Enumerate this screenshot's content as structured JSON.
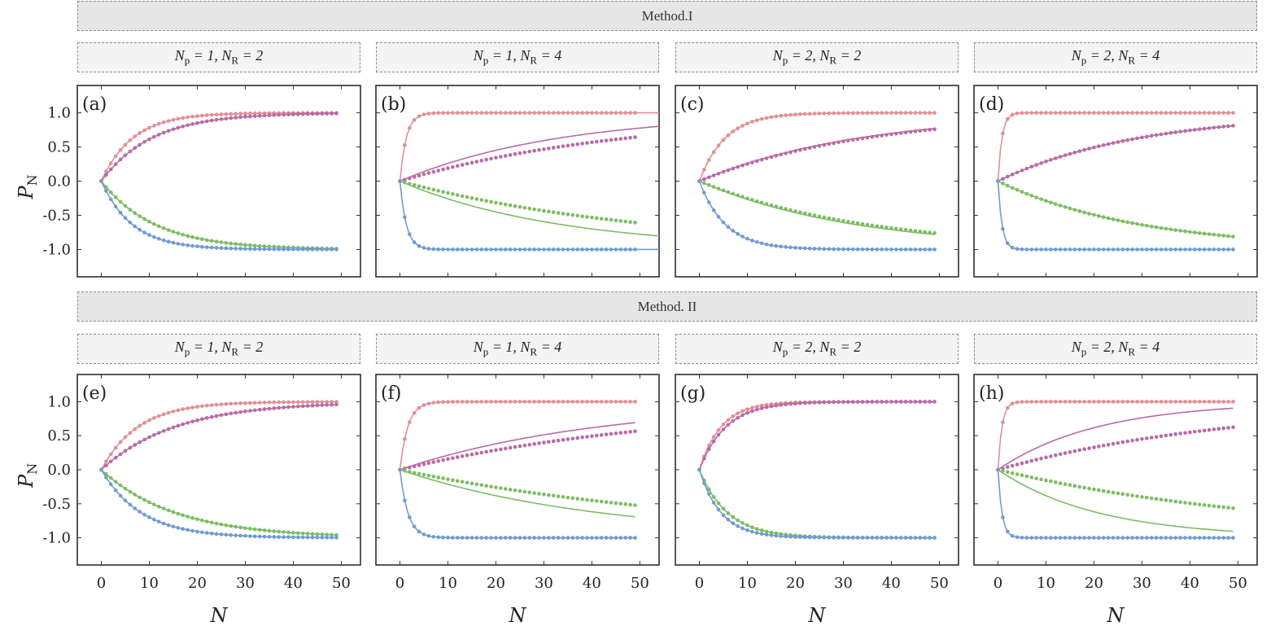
{
  "method_labels": [
    "Method.I",
    "Method. II"
  ],
  "panel_titles": [
    "N_p = 1, N_R = 2",
    "N_p = 1, N_R = 4",
    "N_p = 2, N_R = 2",
    "N_p = 2, N_R = 4"
  ],
  "colors": {
    "pink": "#e28e96",
    "purple": "#b96aa6",
    "green": "#7dbd63",
    "blue": "#6f9bd3",
    "frame": "#2f2f2f",
    "band_bg": "#e6e6e6",
    "title_bg": "#f4f4f4"
  },
  "chart_data": [
    {
      "panel": "(a)",
      "type": "line",
      "ylabel": "P_N",
      "xlabel": "N",
      "xlim": [
        -5,
        54
      ],
      "ylim": [
        -1.4,
        1.4
      ],
      "xticks": [
        0,
        10,
        20,
        30,
        40,
        50
      ],
      "yticks": [
        1.0,
        0.5,
        0.0,
        -0.5,
        -1.0
      ],
      "ytick_labels": [
        "1.0",
        "0.5",
        "0.0",
        "-0.5",
        "-1.0"
      ],
      "xtick_labels": [
        "0",
        "10",
        "20",
        "30",
        "40",
        "50"
      ],
      "series": [
        {
          "name": "pink",
          "color": "pink",
          "sign": 1,
          "dot_rate": 0.152,
          "line_rate": 0.152,
          "n_max": 49
        },
        {
          "name": "purple",
          "color": "purple",
          "sign": 1,
          "dot_rate": 0.095,
          "line_rate": 0.095,
          "n_max": 49
        },
        {
          "name": "green",
          "color": "green",
          "sign": -1,
          "dot_rate": 0.09,
          "line_rate": 0.09,
          "n_max": 49
        },
        {
          "name": "blue",
          "color": "blue",
          "sign": -1,
          "dot_rate": 0.155,
          "line_rate": 0.155,
          "n_max": 49
        }
      ]
    },
    {
      "panel": "(b)",
      "type": "line",
      "xlim": [
        -5,
        54
      ],
      "ylim": [
        -1.4,
        1.4
      ],
      "series": [
        {
          "name": "pink",
          "color": "pink",
          "sign": 1,
          "dot_rate": 0.75,
          "line_rate": 0.75,
          "n_max": 54
        },
        {
          "name": "purple",
          "color": "purple",
          "sign": 1,
          "dot_rate": 0.021,
          "line_rate": 0.03,
          "n_max": 54
        },
        {
          "name": "green",
          "color": "green",
          "sign": -1,
          "dot_rate": 0.019,
          "line_rate": 0.03,
          "n_max": 54
        },
        {
          "name": "blue",
          "color": "blue",
          "sign": -1,
          "dot_rate": 0.75,
          "line_rate": 0.75,
          "n_max": 54
        }
      ]
    },
    {
      "panel": "(c)",
      "type": "line",
      "xlim": [
        -5,
        54
      ],
      "ylim": [
        -1.4,
        1.4
      ],
      "series": [
        {
          "name": "pink",
          "color": "pink",
          "sign": 1,
          "dot_rate": 0.185,
          "line_rate": 0.185,
          "n_max": 49
        },
        {
          "name": "purple",
          "color": "purple",
          "sign": 1,
          "dot_rate": 0.029,
          "line_rate": 0.03,
          "n_max": 49
        },
        {
          "name": "green",
          "color": "green",
          "sign": -1,
          "dot_rate": 0.029,
          "line_rate": 0.031,
          "n_max": 49
        },
        {
          "name": "blue",
          "color": "blue",
          "sign": -1,
          "dot_rate": 0.185,
          "line_rate": 0.185,
          "n_max": 49
        }
      ]
    },
    {
      "panel": "(d)",
      "type": "line",
      "xlim": [
        -5,
        54
      ],
      "ylim": [
        -1.4,
        1.4
      ],
      "series": [
        {
          "name": "pink",
          "color": "pink",
          "sign": 1,
          "dot_rate": 1.2,
          "line_rate": 1.2,
          "n_max": 49
        },
        {
          "name": "purple",
          "color": "purple",
          "sign": 1,
          "dot_rate": 0.034,
          "line_rate": 0.034,
          "n_max": 49
        },
        {
          "name": "green",
          "color": "green",
          "sign": -1,
          "dot_rate": 0.034,
          "line_rate": 0.034,
          "n_max": 49
        },
        {
          "name": "blue",
          "color": "blue",
          "sign": -1,
          "dot_rate": 1.2,
          "line_rate": 1.2,
          "n_max": 49
        }
      ]
    },
    {
      "panel": "(e)",
      "type": "line",
      "ylabel": "P_N",
      "xlabel": "N",
      "xlim": [
        -5,
        54
      ],
      "ylim": [
        -1.4,
        1.4
      ],
      "series": [
        {
          "name": "pink",
          "color": "pink",
          "sign": 1,
          "dot_rate": 0.13,
          "line_rate": 0.13,
          "n_max": 49
        },
        {
          "name": "purple",
          "color": "purple",
          "sign": 1,
          "dot_rate": 0.065,
          "line_rate": 0.065,
          "n_max": 49
        },
        {
          "name": "green",
          "color": "green",
          "sign": -1,
          "dot_rate": 0.065,
          "line_rate": 0.065,
          "n_max": 49
        },
        {
          "name": "blue",
          "color": "blue",
          "sign": -1,
          "dot_rate": 0.12,
          "line_rate": 0.12,
          "n_max": 49
        }
      ]
    },
    {
      "panel": "(f)",
      "type": "line",
      "xlim": [
        -5,
        54
      ],
      "ylim": [
        -1.4,
        1.4
      ],
      "series": [
        {
          "name": "pink",
          "color": "pink",
          "sign": 1,
          "dot_rate": 0.6,
          "line_rate": 0.6,
          "n_max": 49
        },
        {
          "name": "purple",
          "color": "purple",
          "sign": 1,
          "dot_rate": 0.017,
          "line_rate": 0.024,
          "n_max": 49
        },
        {
          "name": "green",
          "color": "green",
          "sign": -1,
          "dot_rate": 0.015,
          "line_rate": 0.024,
          "n_max": 49
        },
        {
          "name": "blue",
          "color": "blue",
          "sign": -1,
          "dot_rate": 0.6,
          "line_rate": 0.6,
          "n_max": 49
        }
      ]
    },
    {
      "panel": "(g)",
      "type": "line",
      "xlim": [
        -5,
        54
      ],
      "ylim": [
        -1.4,
        1.4
      ],
      "series": [
        {
          "name": "pink",
          "color": "pink",
          "sign": 1,
          "dot_rate": 0.22,
          "line_rate": 0.22,
          "n_max": 49
        },
        {
          "name": "purple",
          "color": "purple",
          "sign": 1,
          "dot_rate": 0.18,
          "line_rate": 0.18,
          "n_max": 49
        },
        {
          "name": "green",
          "color": "green",
          "sign": -1,
          "dot_rate": 0.17,
          "line_rate": 0.17,
          "n_max": 49
        },
        {
          "name": "blue",
          "color": "blue",
          "sign": -1,
          "dot_rate": 0.22,
          "line_rate": 0.22,
          "n_max": 49
        }
      ]
    },
    {
      "panel": "(h)",
      "type": "line",
      "xlim": [
        -5,
        54
      ],
      "ylim": [
        -1.4,
        1.4
      ],
      "series": [
        {
          "name": "pink",
          "color": "pink",
          "sign": 1,
          "dot_rate": 1.2,
          "line_rate": 1.2,
          "n_max": 49
        },
        {
          "name": "purple",
          "color": "purple",
          "sign": 1,
          "dot_rate": 0.02,
          "line_rate": 0.048,
          "n_max": 49
        },
        {
          "name": "green",
          "color": "green",
          "sign": -1,
          "dot_rate": 0.017,
          "line_rate": 0.048,
          "n_max": 49
        },
        {
          "name": "blue",
          "color": "blue",
          "sign": -1,
          "dot_rate": 1.2,
          "line_rate": 1.2,
          "n_max": 49
        }
      ]
    }
  ],
  "axis_labels": {
    "y": "P",
    "y_sub": "N",
    "x": "N"
  },
  "ytick_labels": [
    "1.0",
    "0.5",
    "0.0",
    "-0.5",
    "-1.0"
  ],
  "xtick_labels": [
    "0",
    "10",
    "20",
    "30",
    "40",
    "50"
  ]
}
